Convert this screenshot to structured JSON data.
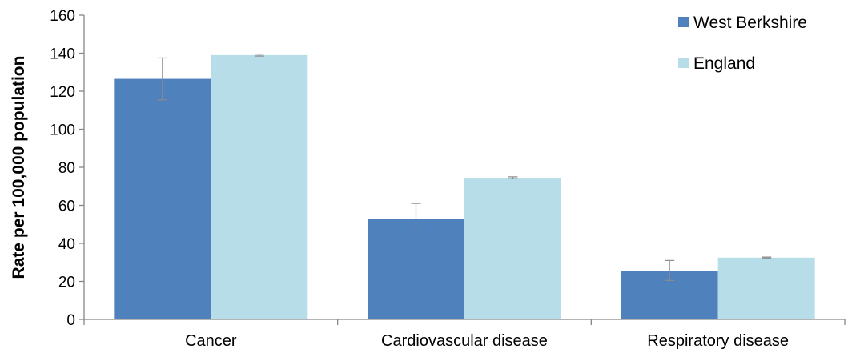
{
  "chart_data": {
    "type": "bar",
    "title": "",
    "xlabel": "",
    "ylabel": "Rate per 100,000 population",
    "categories": [
      "Cancer",
      "Cardiovascular disease",
      "Respiratory disease"
    ],
    "ylim": [
      0,
      160
    ],
    "yticks": [
      0,
      20,
      40,
      60,
      80,
      100,
      120,
      140,
      160
    ],
    "grid": false,
    "legend_position": "top-right",
    "series": [
      {
        "name": "West Berkshire",
        "color": "#4f81bd",
        "values": [
          126.5,
          53.0,
          25.5
        ],
        "error_low": [
          115.5,
          46.5,
          20.5
        ],
        "error_high": [
          137.5,
          61.0,
          31.0
        ]
      },
      {
        "name": "England",
        "color": "#b7dee8",
        "values": [
          139.0,
          74.5,
          32.5
        ],
        "error_low": [
          138.5,
          74.0,
          32.3
        ],
        "error_high": [
          139.5,
          75.0,
          32.8
        ]
      }
    ]
  }
}
